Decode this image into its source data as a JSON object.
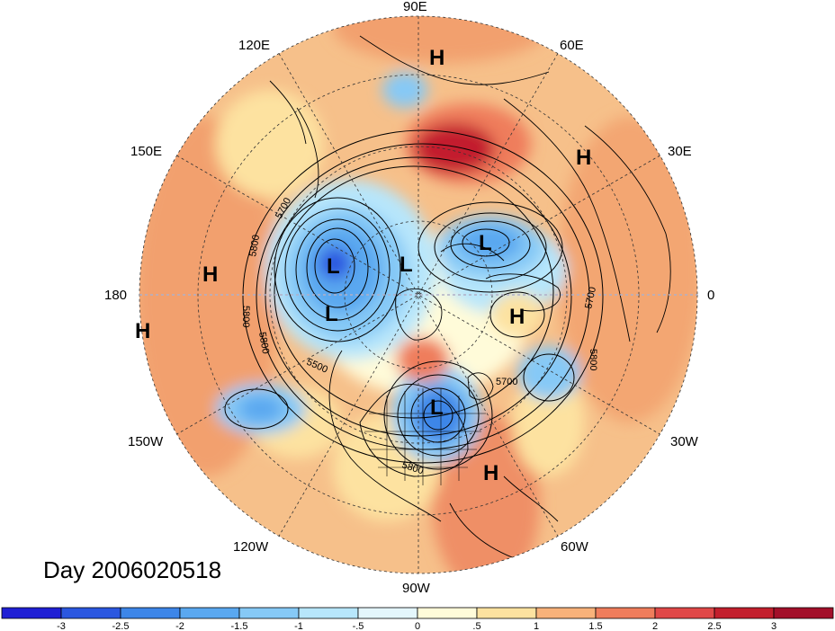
{
  "title": "Day 2006020518",
  "longitude_labels": [
    "90E",
    "60E",
    "120E",
    "150E",
    "30E",
    "180",
    "0",
    "150W",
    "30W",
    "120W",
    "60W",
    "90W"
  ],
  "contour_labels": [
    "5700",
    "5800",
    "5800",
    "5800",
    "5500",
    "5700",
    "5700",
    "5800",
    "5800"
  ],
  "pressure_centers": [
    {
      "label": "H"
    },
    {
      "label": "H"
    },
    {
      "label": "H"
    },
    {
      "label": "H"
    },
    {
      "label": "H"
    },
    {
      "label": "H"
    },
    {
      "label": "L"
    },
    {
      "label": "L"
    },
    {
      "label": "L"
    },
    {
      "label": "L"
    },
    {
      "label": "L"
    }
  ],
  "colorbar": {
    "labels": [
      "-3",
      "-2.5",
      "-2",
      "-1.5",
      "-1",
      "-.5",
      "0",
      ".5",
      "1",
      "1.5",
      "2",
      "2.5",
      "3"
    ],
    "colors": [
      "#1f1fd4",
      "#2b57e0",
      "#3d86e8",
      "#5aa8f0",
      "#86c9f6",
      "#b7e6fb",
      "#e4f6fc",
      "#fffbd9",
      "#fde2a0",
      "#f8b27a",
      "#ef7d5c",
      "#e04848",
      "#c31f2d",
      "#a3102a"
    ]
  }
}
